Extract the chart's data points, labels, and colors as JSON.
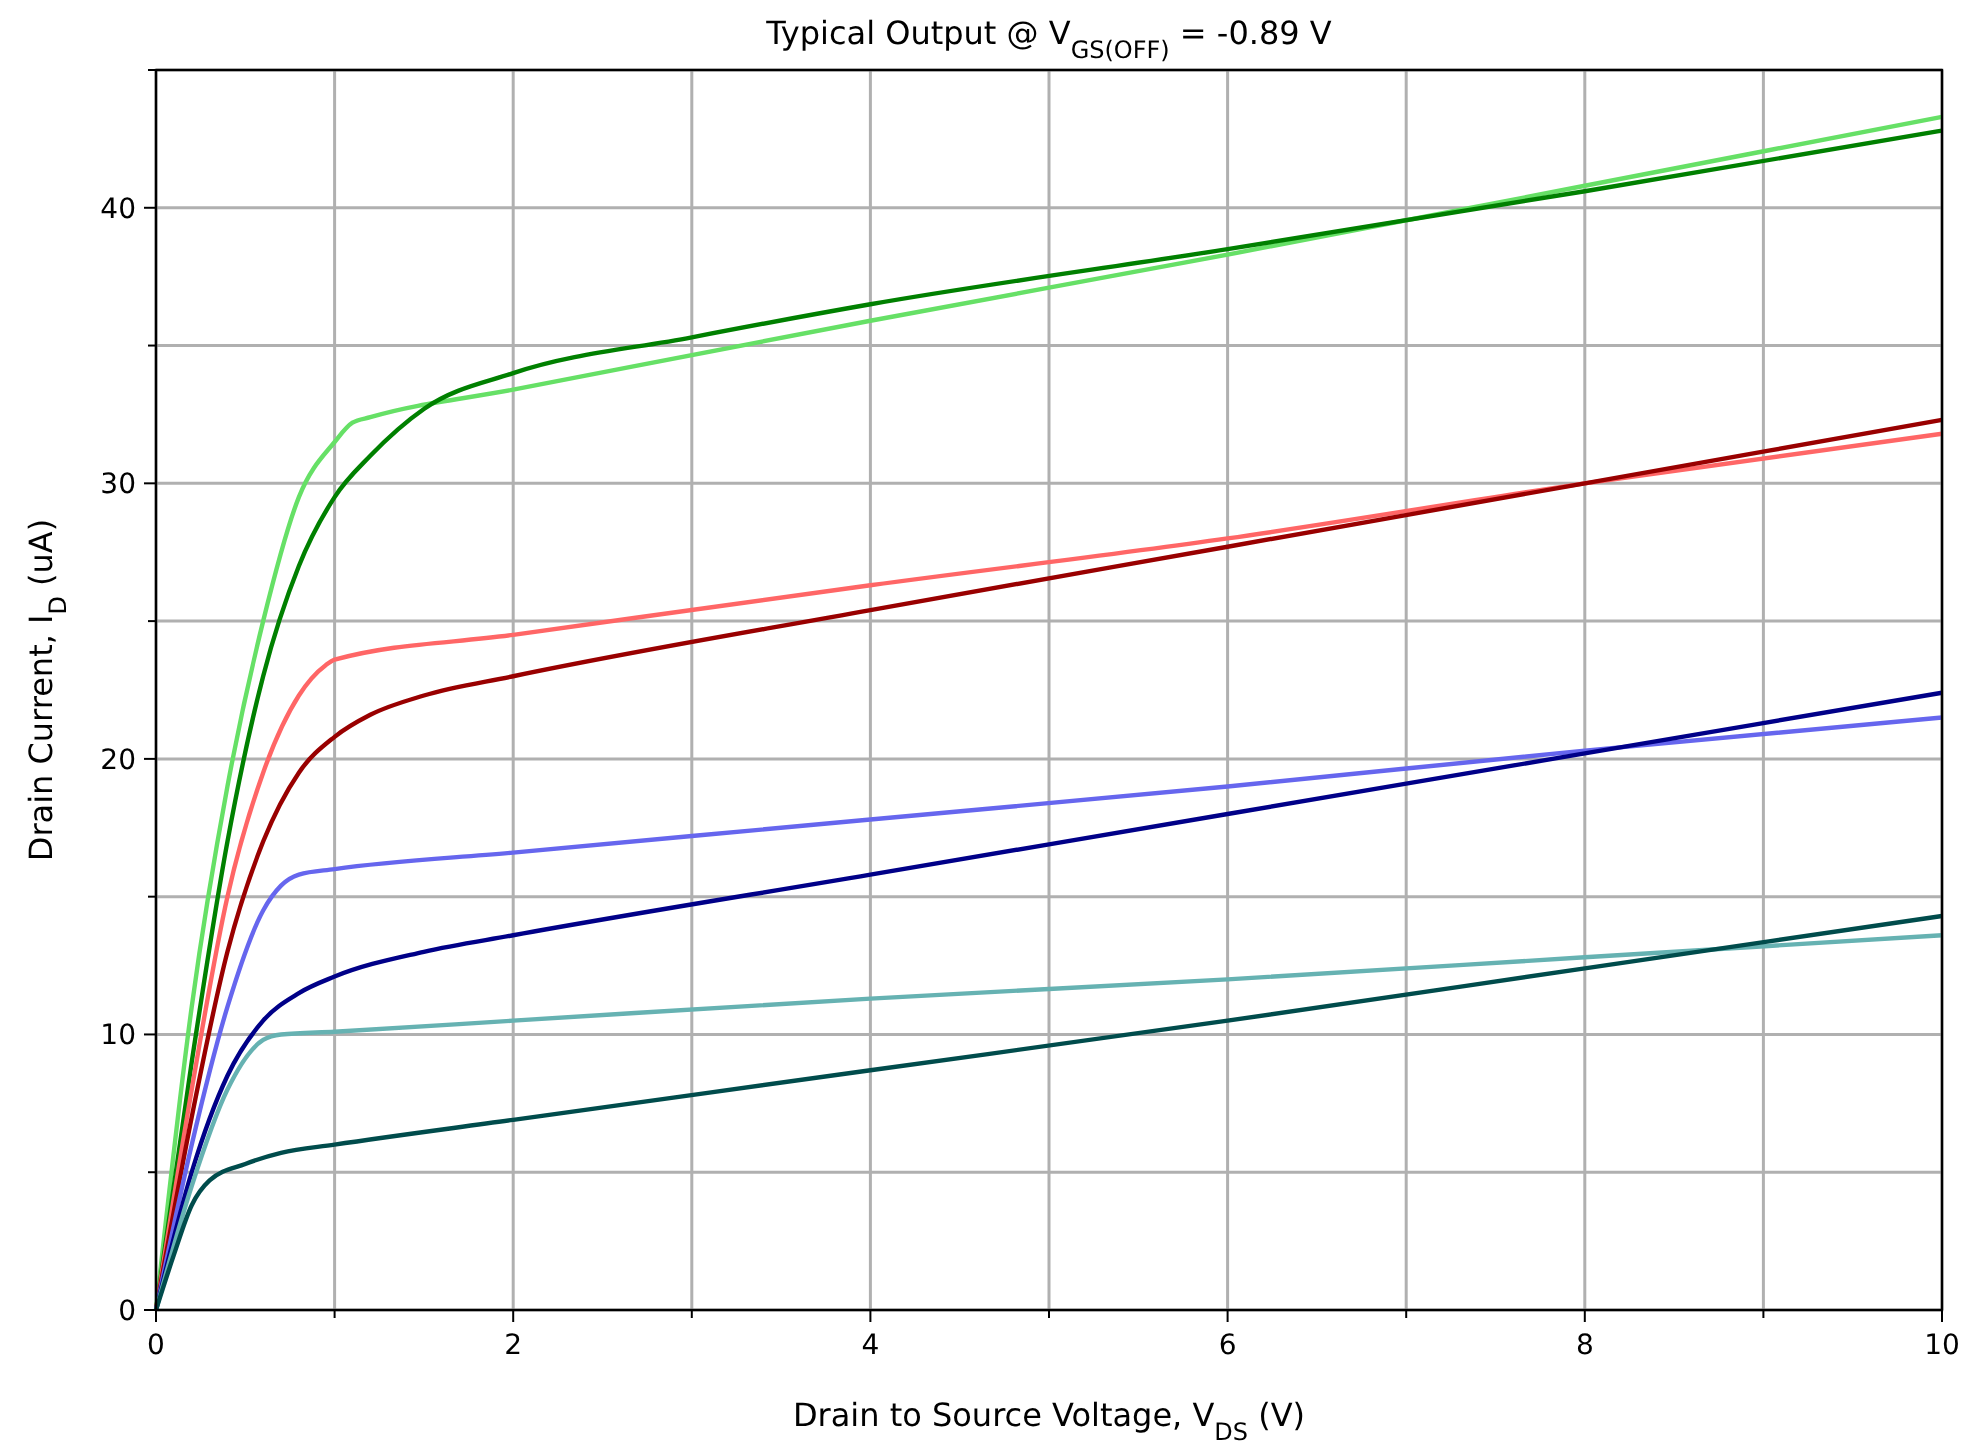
{
  "chart_data": {
    "type": "line",
    "title": "Typical Output @ V$_{GS(OFF)}$ = -0.89 V",
    "xlabel": "Drain to Source Voltage, V$_{DS}$ (V)",
    "ylabel": "Drain Current, I$_{D}$ (uA)",
    "xlim": [
      0,
      10
    ],
    "ylim": [
      0,
      45
    ],
    "xticks": [
      0,
      {
        "value": 1,
        "label": null
      },
      2,
      {
        "value": 3,
        "label": null
      },
      4,
      {
        "value": 5,
        "label": null
      },
      6,
      {
        "value": 7,
        "label": null
      },
      8,
      {
        "value": 9,
        "label": null
      },
      10
    ],
    "yticks": [
      0,
      {
        "value": 5,
        "label": null
      },
      10,
      {
        "value": 15,
        "label": null
      },
      20,
      {
        "value": 25,
        "label": null
      },
      30,
      {
        "value": 35,
        "label": null
      },
      40,
      {
        "value": 45,
        "label": null
      }
    ],
    "grid": true,
    "line_style": "solid",
    "series": [
      {
        "color": "#66e066",
        "x": [
          0,
          0.2,
          0.4,
          0.6,
          0.8,
          1.0,
          1.1,
          1.2,
          2,
          4,
          6,
          8,
          10
        ],
        "values": [
          0,
          11,
          19,
          25,
          29.5,
          31.5,
          32.2,
          32.4,
          33.4,
          35.9,
          38.3,
          40.8,
          43.3
        ]
      },
      {
        "color": "#008000",
        "x": [
          0,
          0.2,
          0.4,
          0.6,
          0.8,
          1.0,
          1.2,
          1.5,
          2,
          3,
          4,
          6,
          8,
          10
        ],
        "values": [
          0,
          9,
          17,
          23,
          27,
          29.5,
          31,
          32.7,
          34,
          35.3,
          36.5,
          38.5,
          40.6,
          42.8
        ]
      },
      {
        "color": "#ff6666",
        "x": [
          0,
          0.2,
          0.4,
          0.6,
          0.8,
          0.95,
          1.0,
          2,
          4,
          6,
          8,
          10
        ],
        "values": [
          0,
          8,
          15,
          19.5,
          22.3,
          23.4,
          23.6,
          24.5,
          26.3,
          28,
          30,
          31.8
        ]
      },
      {
        "color": "#990000",
        "x": [
          0,
          0.2,
          0.4,
          0.6,
          0.8,
          1.0,
          1.2,
          1.5,
          2,
          4,
          6,
          8,
          10
        ],
        "values": [
          0,
          7,
          13,
          17,
          19.5,
          20.8,
          21.6,
          22.3,
          23,
          25.4,
          27.7,
          30,
          32.3
        ]
      },
      {
        "color": "#6666ee",
        "x": [
          0,
          0.2,
          0.4,
          0.6,
          0.7,
          0.8,
          1,
          2,
          4,
          6,
          8,
          10
        ],
        "values": [
          0,
          6,
          11,
          14.5,
          15.4,
          15.8,
          16,
          16.6,
          17.8,
          19,
          20.3,
          21.5
        ]
      },
      {
        "color": "#000088",
        "x": [
          0,
          0.2,
          0.4,
          0.6,
          0.8,
          1,
          1.5,
          2,
          4,
          6,
          8,
          10
        ],
        "values": [
          0,
          5,
          8.5,
          10.5,
          11.5,
          12.1,
          13,
          13.6,
          15.8,
          18,
          20.2,
          22.4
        ]
      },
      {
        "color": "#66b2b2",
        "x": [
          0,
          0.2,
          0.4,
          0.6,
          0.7,
          1,
          2,
          4,
          6,
          8,
          10
        ],
        "values": [
          0,
          4.5,
          8,
          9.8,
          10,
          10.1,
          10.5,
          11.3,
          12,
          12.8,
          13.6
        ]
      },
      {
        "color": "#004c4c",
        "x": [
          0,
          0.1,
          0.2,
          0.3,
          0.5,
          0.7,
          1,
          2,
          4,
          6,
          8,
          10
        ],
        "values": [
          0,
          2,
          3.8,
          4.7,
          5.3,
          5.7,
          6,
          6.9,
          8.7,
          10.5,
          12.4,
          14.3
        ]
      }
    ]
  }
}
